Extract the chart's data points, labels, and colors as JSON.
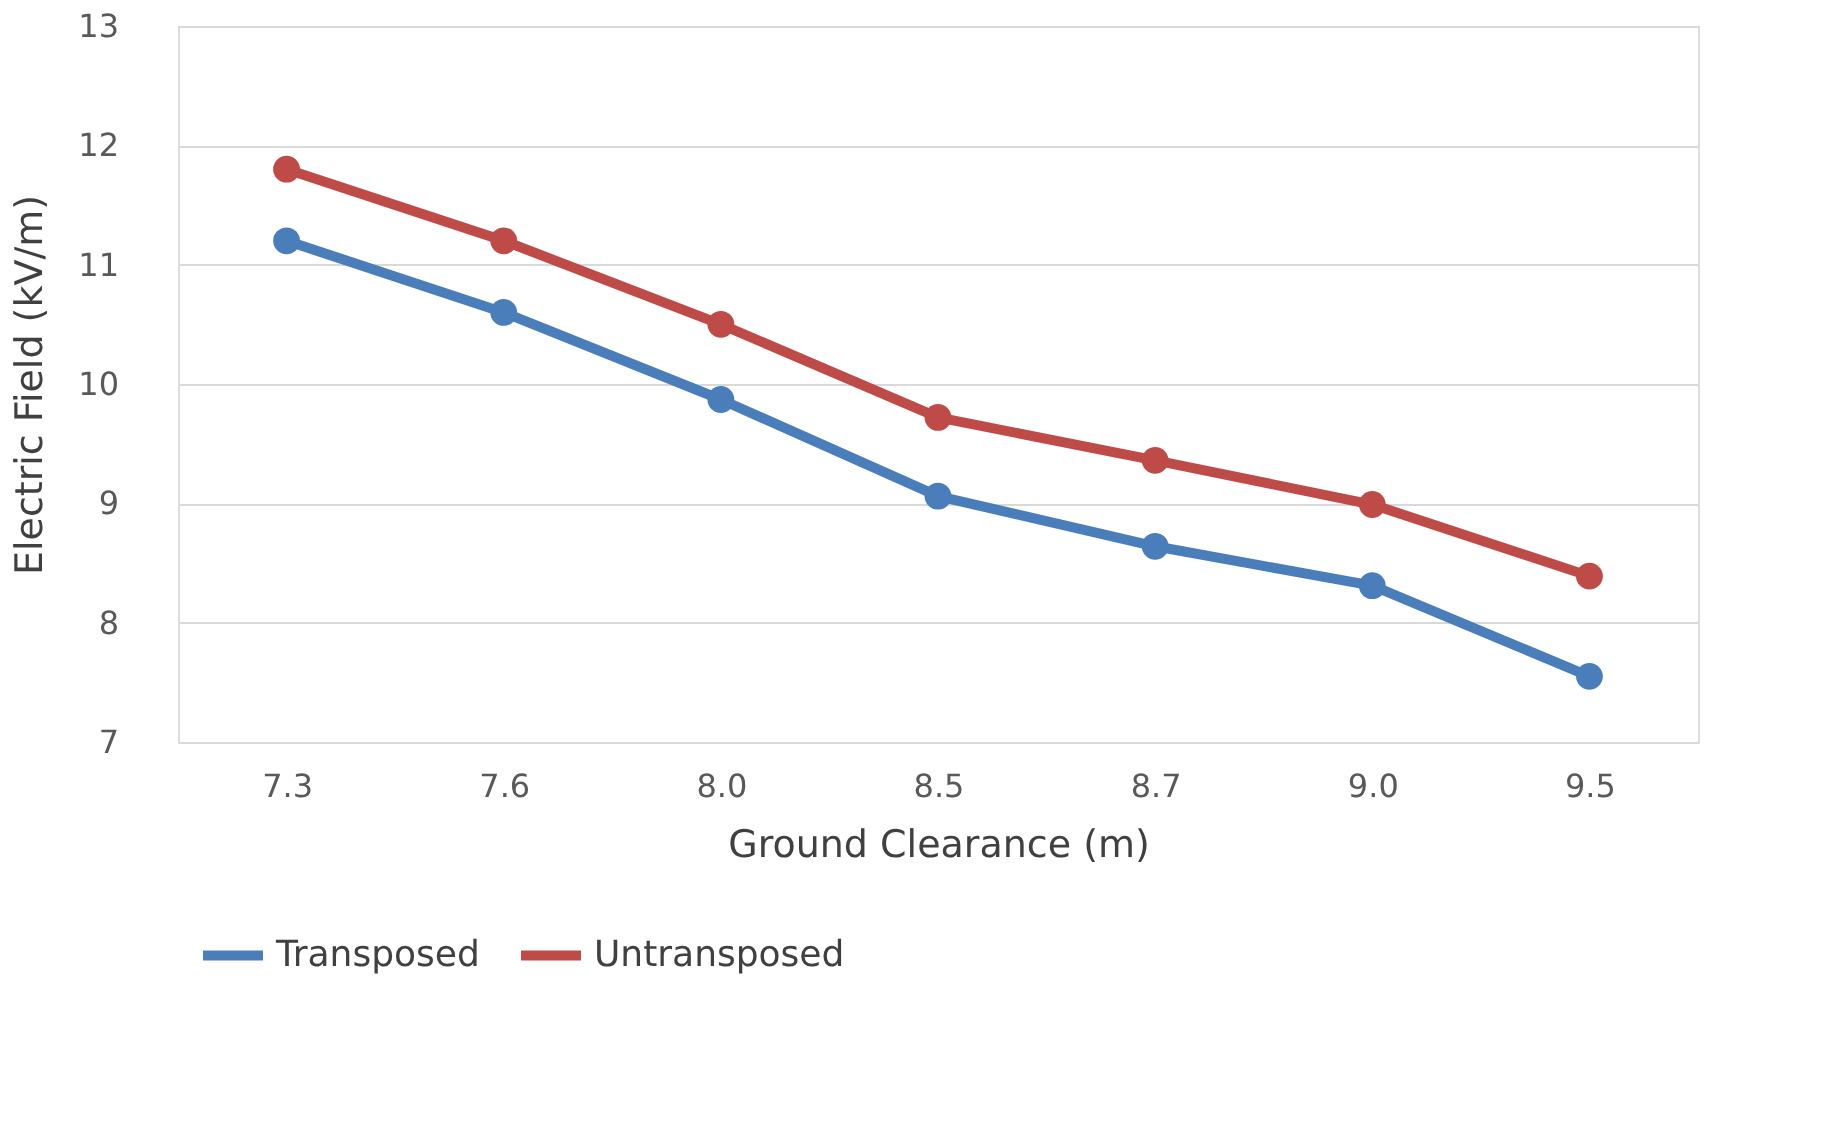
{
  "chart_data": {
    "type": "line",
    "xlabel": "Ground Clearance (m)",
    "ylabel": "Electric Field (kV/m)",
    "categories": [
      "7.3",
      "7.6",
      "8.0",
      "8.5",
      "8.7",
      "9.0",
      "9.5"
    ],
    "series": [
      {
        "name": "Transposed",
        "color": "#4a7ebb",
        "values": [
          11.2,
          10.6,
          9.87,
          9.06,
          8.64,
          8.31,
          7.55
        ]
      },
      {
        "name": "Untransposed",
        "color": "#be4b48",
        "values": [
          11.8,
          11.2,
          10.5,
          9.72,
          9.36,
          8.99,
          8.39
        ]
      }
    ],
    "ylim": [
      7,
      13
    ],
    "yticks": [
      7,
      8,
      9,
      10,
      11,
      12,
      13
    ],
    "grid": "y",
    "legend": "bottom",
    "marker": "circle",
    "line_style": "solid"
  }
}
